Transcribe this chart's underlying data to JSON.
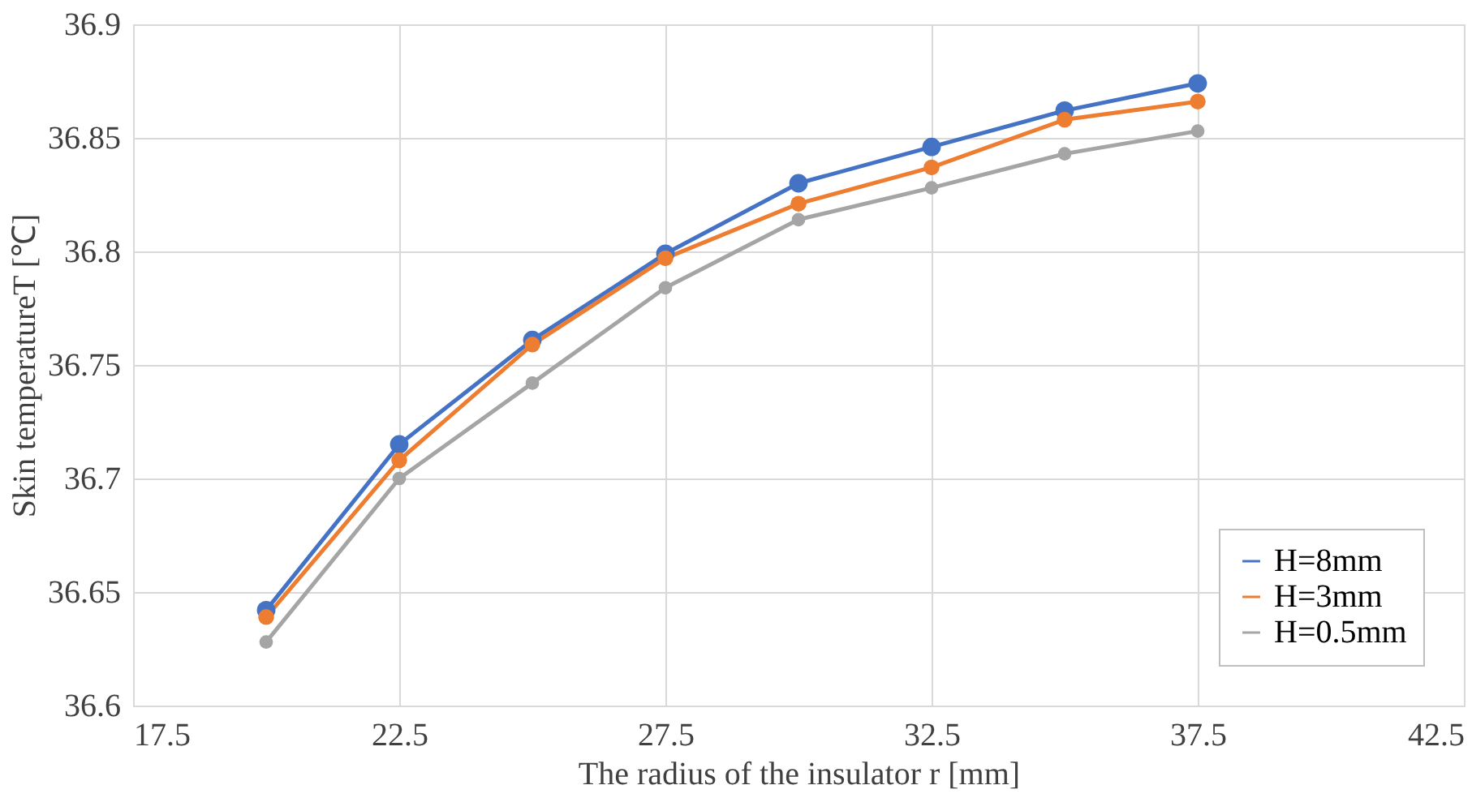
{
  "chart_data": {
    "type": "line",
    "xlabel": "The radius of the insulator r [mm]",
    "ylabel": "Skin temperatureT [℃]",
    "x": [
      20,
      22.5,
      25,
      27.5,
      30,
      32.5,
      35,
      37.5
    ],
    "series": [
      {
        "name": "H=8mm",
        "color": "#4472c4",
        "values": [
          36.642,
          36.715,
          36.761,
          36.799,
          36.83,
          36.846,
          36.862,
          36.874
        ]
      },
      {
        "name": "H=3mm",
        "color": "#ed7d31",
        "values": [
          36.639,
          36.708,
          36.759,
          36.797,
          36.821,
          36.837,
          36.858,
          36.866
        ]
      },
      {
        "name": "H=0.5mm",
        "color": "#a5a5a5",
        "values": [
          36.628,
          36.7,
          36.742,
          36.784,
          36.814,
          36.828,
          36.843,
          36.853
        ]
      }
    ],
    "xlim": [
      17.5,
      42.5
    ],
    "xticks": [
      17.5,
      22.5,
      27.5,
      32.5,
      37.5,
      42.5
    ],
    "ylim": [
      36.6,
      36.9
    ],
    "yticks": [
      36.6,
      36.65,
      36.7,
      36.75,
      36.8,
      36.85,
      36.9
    ],
    "grid": true,
    "legend": "bottom right",
    "marker": "circle",
    "line_style": "solid"
  }
}
